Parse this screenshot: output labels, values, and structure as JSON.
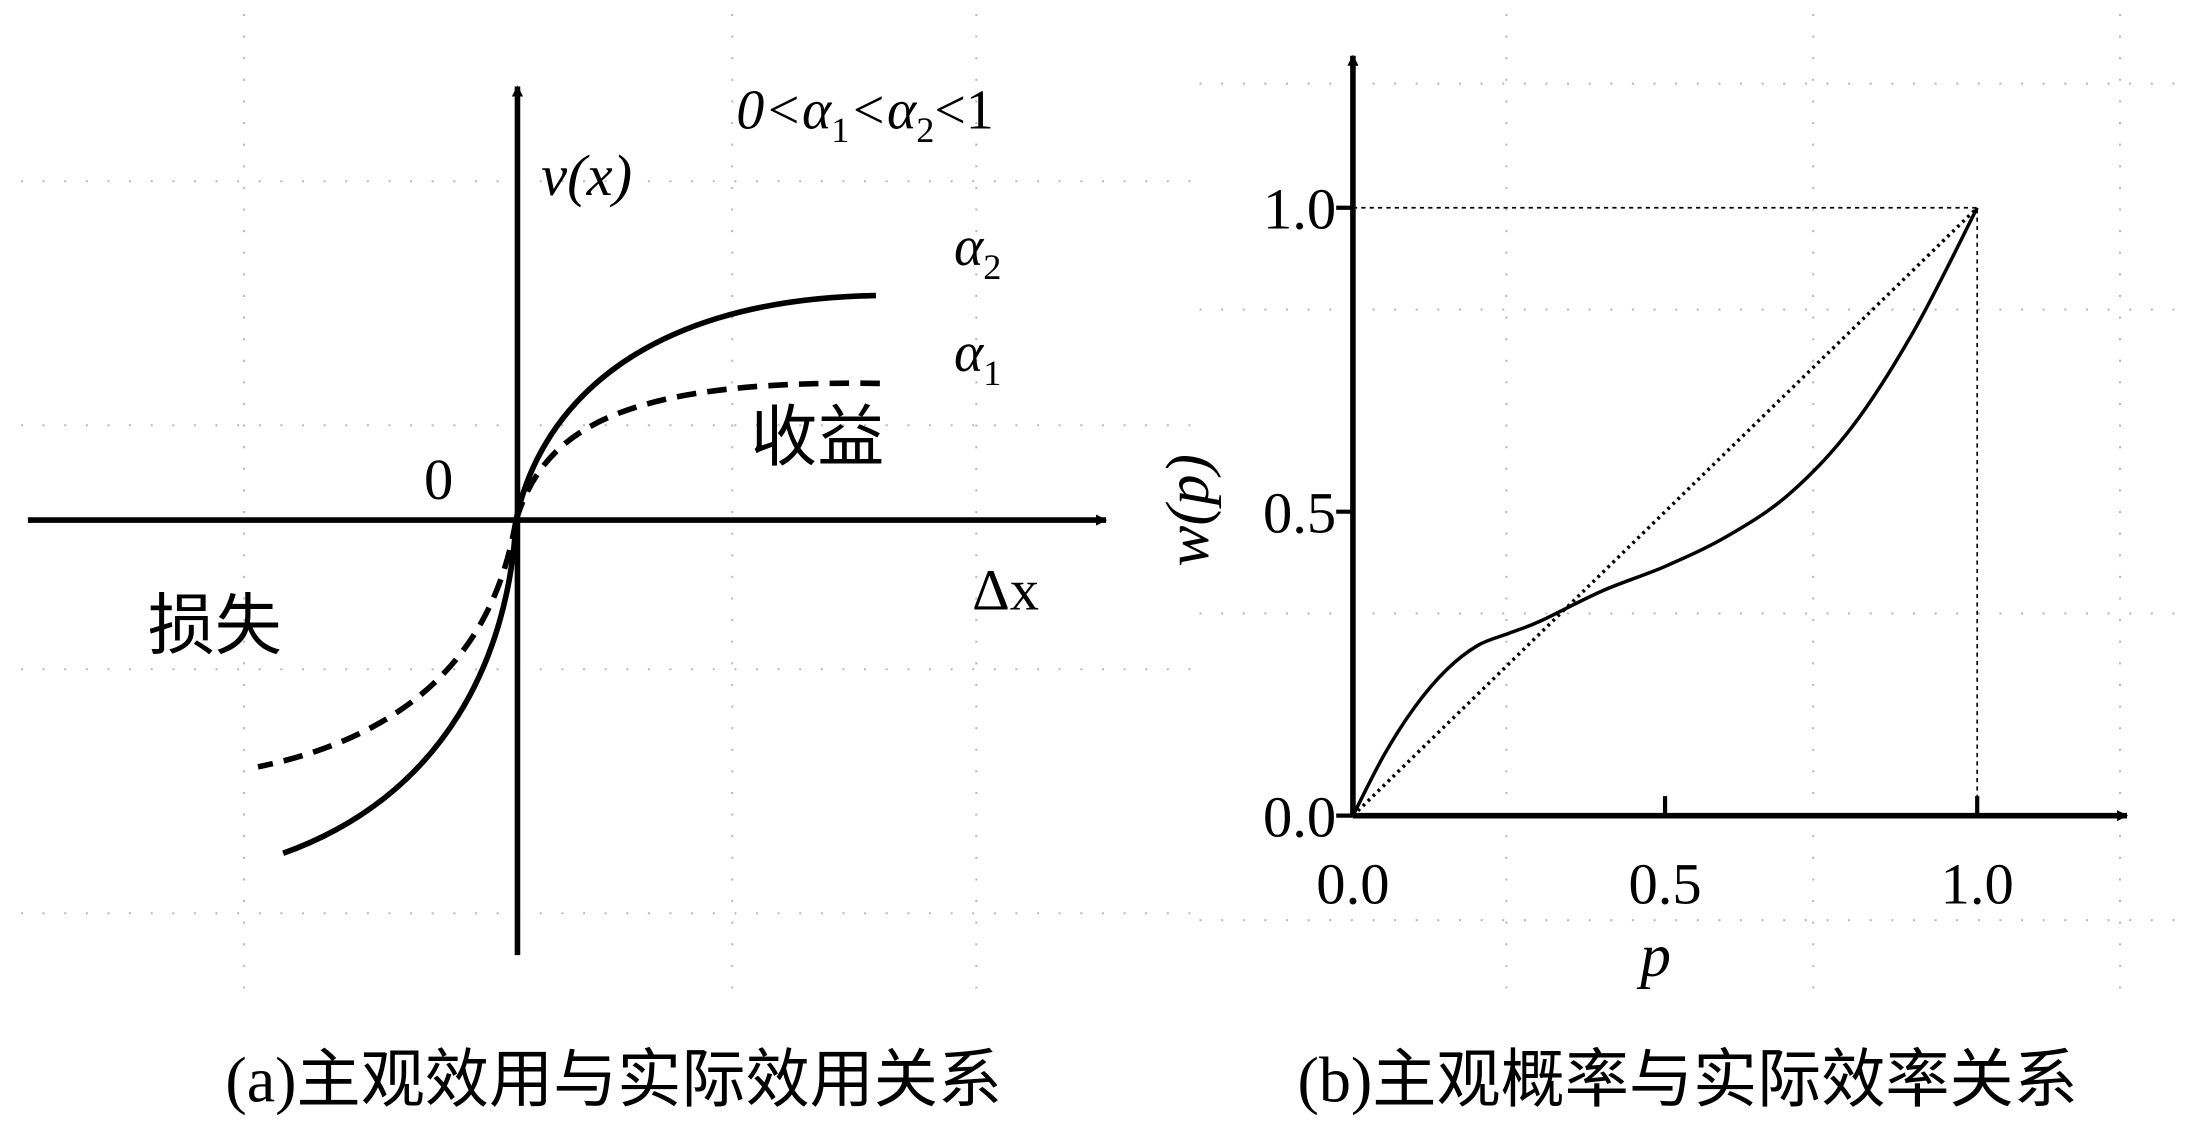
{
  "panel_a": {
    "condition": [
      "0<α",
      "1",
      "<α",
      "2",
      "<1"
    ],
    "y_label": "v(x)",
    "x_label": "Δx",
    "origin_label": "0",
    "curve_labels": [
      [
        "α",
        "2"
      ],
      [
        "α",
        "1"
      ]
    ],
    "gain_label": "收益",
    "loss_label": "损失",
    "caption": "(a)主观效用与实际效用关系"
  },
  "chart_data": {
    "type": "line",
    "caption": "(b)主观概率与实际效率关系",
    "x_label": "p",
    "y_label": "w(p)",
    "xlim": [
      0,
      1.24
    ],
    "ylim": [
      0,
      1.25
    ],
    "xticks": [
      {
        "value": 0,
        "label": "0.0"
      },
      {
        "value": 0.5,
        "label": "0.5"
      },
      {
        "value": 1,
        "label": "1.0"
      }
    ],
    "yticks": [
      {
        "value": 0,
        "label": "0.0"
      },
      {
        "value": 0.5,
        "label": "0.5"
      },
      {
        "value": 1,
        "label": "1.0"
      }
    ],
    "series": [
      {
        "color": "#000000",
        "style": "solid",
        "x": [
          0,
          0.05,
          0.1,
          0.15,
          0.2,
          0.25,
          0.3,
          0.4,
          0.5,
          0.6,
          0.7,
          0.8,
          0.9,
          1
        ],
        "values": [
          0,
          0.1,
          0.18,
          0.24,
          0.28,
          0.3,
          0.32,
          0.37,
          0.41,
          0.46,
          0.53,
          0.64,
          0.8,
          1
        ]
      },
      {
        "color": "#000000",
        "style": "dotted",
        "x": [
          0,
          1
        ],
        "values": [
          0,
          1
        ]
      }
    ]
  }
}
